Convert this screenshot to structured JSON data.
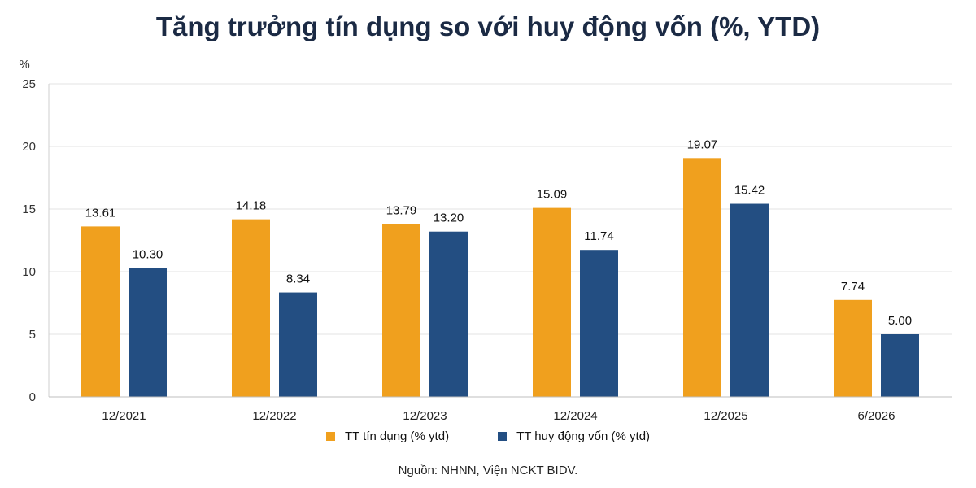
{
  "chart_data": {
    "type": "bar",
    "title": "Tăng trưởng tín dụng so với huy động vốn (%, YTD)",
    "ylabel": "%",
    "ylim": [
      0,
      25
    ],
    "yticks": [
      "0",
      "5",
      "10",
      "15",
      "20",
      "25"
    ],
    "grid": true,
    "legend_position": "bottom",
    "categories": [
      "12/2021",
      "12/2022",
      "12/2023",
      "12/2024",
      "12/2025",
      "6/2026"
    ],
    "series": [
      {
        "name": "TT tín dụng (% ytd)",
        "color": "#F0A01E",
        "values": [
          13.61,
          14.18,
          13.79,
          15.09,
          19.07,
          7.74
        ],
        "labels": [
          "13.61",
          "14.18",
          "13.79",
          "15.09",
          "19.07",
          "7.74"
        ]
      },
      {
        "name": "TT huy động vốn (% ytd)",
        "color": "#234E82",
        "values": [
          10.3,
          8.34,
          13.2,
          11.74,
          15.42,
          5.0
        ],
        "labels": [
          "10.30",
          "8.34",
          "13.20",
          "11.74",
          "15.42",
          "5.00"
        ]
      }
    ],
    "source": "Nguồn: NHNN, Viện NCKT BIDV."
  }
}
